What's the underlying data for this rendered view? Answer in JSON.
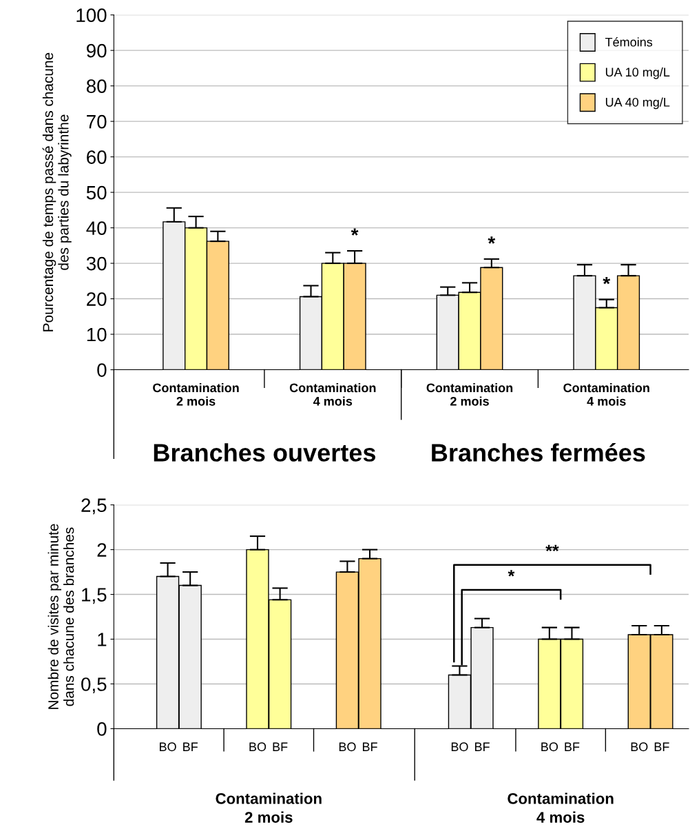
{
  "chart_data": [
    {
      "type": "bar",
      "ylabel": "Pourcentage de temps passé dans chacune\ndes parties du labyrinthe",
      "categories": [
        "Contamination\n2 mois",
        "Contamination\n4 mois",
        "Contamination\n2 mois",
        "Contamination\n4 mois"
      ],
      "series": [
        {
          "name": "Témoins",
          "color": "#eeeeee",
          "values": [
            41.7,
            20.6,
            21,
            26.5
          ],
          "errors": [
            3.9,
            3.1,
            2.3,
            3.1
          ]
        },
        {
          "name": "UA 10 mg/L",
          "color": "#ffff99",
          "values": [
            40,
            30,
            21.8,
            17.5
          ],
          "errors": [
            3.2,
            3,
            2.7,
            2.3
          ]
        },
        {
          "name": "UA 40 mg/L",
          "color": "#ffd280",
          "values": [
            36.2,
            30,
            28.8,
            26.5
          ],
          "errors": [
            2.8,
            3.5,
            2.4,
            3.1
          ]
        }
      ],
      "ylim": [
        0,
        100
      ],
      "yticks": [
        0,
        10,
        20,
        30,
        40,
        50,
        60,
        70,
        80,
        90,
        100
      ],
      "grid": "y",
      "legend": "top right",
      "annotations": [
        "*",
        "*",
        "*",
        "Branches ouvertes",
        "Branches fermées"
      ]
    },
    {
      "type": "bar",
      "ylabel": "Nombre de visites par minute\ndans chacune des branches",
      "categories": [
        "BO",
        "BF",
        null,
        null,
        "BO",
        "BF",
        null,
        null,
        "BO",
        "BF",
        null,
        null,
        null,
        "BO",
        "BF",
        null,
        null,
        "BO",
        "BF",
        null,
        null,
        "BO",
        "BF"
      ],
      "values": [
        1.7,
        1.6,
        null,
        null,
        2.0,
        1.44,
        null,
        null,
        1.75,
        1.9,
        null,
        null,
        null,
        0.6,
        1.13,
        null,
        null,
        1.0,
        1.0,
        null,
        null,
        1.05,
        1.05
      ],
      "errors": [
        0.15,
        0.15,
        null,
        null,
        0.15,
        0.13,
        null,
        null,
        0.12,
        0.1,
        null,
        null,
        null,
        0.1,
        0.1,
        null,
        null,
        0.13,
        0.13,
        null,
        null,
        0.1,
        0.1
      ],
      "colors": [
        "#eeeeee",
        "#eeeeee",
        null,
        null,
        "#ffff99",
        "#ffff99",
        null,
        null,
        "#ffd280",
        "#ffd280",
        null,
        null,
        null,
        "#eeeeee",
        "#eeeeee",
        null,
        null,
        "#ffff99",
        "#ffff99",
        null,
        null,
        "#ffd280",
        "#ffd280"
      ],
      "ylim": [
        0,
        2.5
      ],
      "yticks": [
        0,
        {
          "value": 0.5,
          "label": "0,5"
        },
        1,
        {
          "value": 1.5,
          "label": "1,5"
        },
        2,
        {
          "value": 2.5,
          "label": "2,5"
        }
      ],
      "grid": "y",
      "annotations": [
        "*",
        "**",
        "Contamination\n2 mois",
        "Contamination\n4 mois"
      ]
    }
  ]
}
